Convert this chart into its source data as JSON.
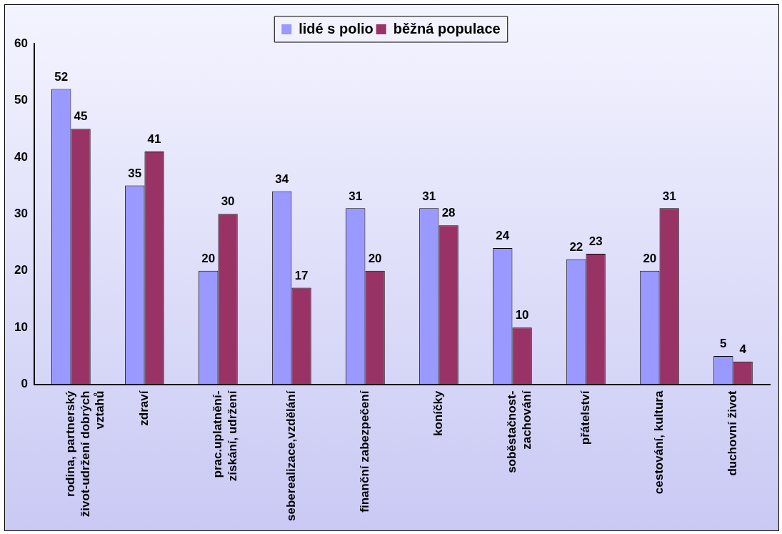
{
  "chart_data": {
    "type": "bar",
    "categories": [
      "rodina, partnerský život-udržení dobrých vztahů",
      "zdraví",
      "prac.uplatnění-získání, udržení",
      "seberealizace,vzdělání",
      "finanční zabezpečení",
      "koníčky",
      "soběstačnost-zachování",
      "přátelství",
      "cestování, kultura",
      "duchovní život"
    ],
    "series": [
      {
        "name": "lidé s polio",
        "color": "#9999ff",
        "values": [
          52,
          35,
          20,
          34,
          31,
          31,
          24,
          22,
          20,
          5
        ]
      },
      {
        "name": "běžná populace",
        "color": "#993366",
        "values": [
          45,
          41,
          30,
          17,
          20,
          28,
          10,
          23,
          31,
          4
        ]
      }
    ],
    "ylim": [
      0,
      60
    ],
    "yticks": [
      0,
      10,
      20,
      30,
      40,
      50,
      60
    ],
    "grid": false,
    "legend": "top",
    "data_labels": true
  }
}
